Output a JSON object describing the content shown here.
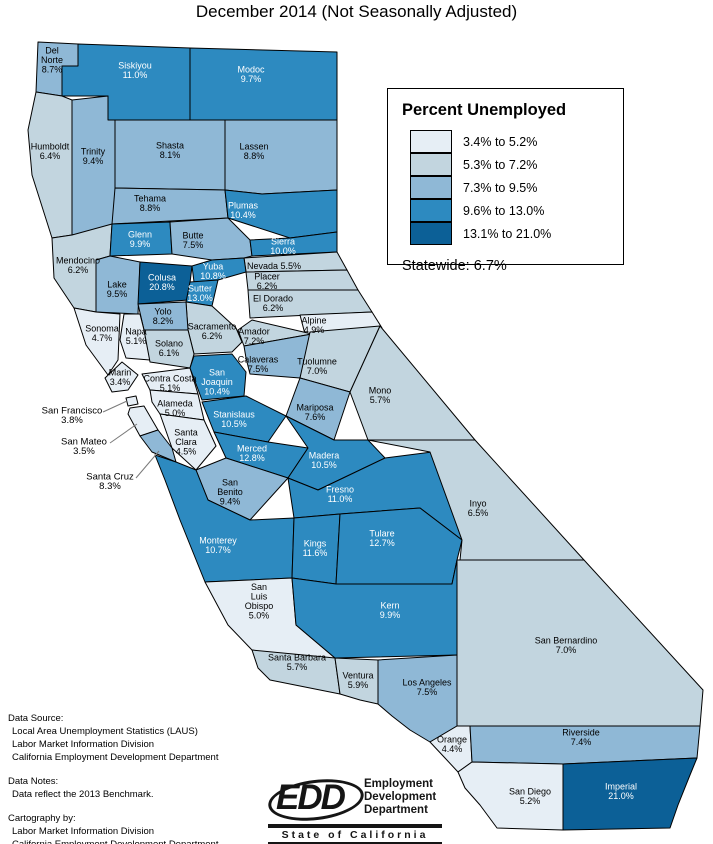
{
  "title": "December 2014 (Not Seasonally Adjusted)",
  "legend": {
    "title": "Percent Unemployed",
    "classes": [
      {
        "label": "3.4% to 5.2%",
        "color": "#e6eef5"
      },
      {
        "label": "5.3% to 7.2%",
        "color": "#c2d5df"
      },
      {
        "label": "7.3% to 9.5%",
        "color": "#8fb8d6"
      },
      {
        "label": "9.6% to 13.0%",
        "color": "#2d8ac0"
      },
      {
        "label": "13.1% to 21.0%",
        "color": "#0c6097"
      }
    ],
    "statewide": "Statewide: 6.7%"
  },
  "counties": [
    {
      "id": "delnorte",
      "name": "Del Norte",
      "rate": "8.7%"
    },
    {
      "id": "siskiyou",
      "name": "Siskiyou",
      "rate": "11.0%"
    },
    {
      "id": "modoc",
      "name": "Modoc",
      "rate": "9.7%"
    },
    {
      "id": "humboldt",
      "name": "Humboldt",
      "rate": "6.4%"
    },
    {
      "id": "trinity",
      "name": "Trinity",
      "rate": "9.4%"
    },
    {
      "id": "shasta",
      "name": "Shasta",
      "rate": "8.1%"
    },
    {
      "id": "lassen",
      "name": "Lassen",
      "rate": "8.8%"
    },
    {
      "id": "tehama",
      "name": "Tehama",
      "rate": "8.8%"
    },
    {
      "id": "plumas",
      "name": "Plumas",
      "rate": "10.4%"
    },
    {
      "id": "mendocino",
      "name": "Mendocino",
      "rate": "6.2%"
    },
    {
      "id": "glenn",
      "name": "Glenn",
      "rate": "9.9%"
    },
    {
      "id": "butte",
      "name": "Butte",
      "rate": "7.5%"
    },
    {
      "id": "sierra",
      "name": "Sierra",
      "rate": "10.0%"
    },
    {
      "id": "nevada",
      "name": "Nevada",
      "rate": "5.5%"
    },
    {
      "id": "lake",
      "name": "Lake",
      "rate": "9.5%"
    },
    {
      "id": "colusa",
      "name": "Colusa",
      "rate": "20.8%"
    },
    {
      "id": "yuba",
      "name": "Yuba",
      "rate": "10.8%"
    },
    {
      "id": "sutter",
      "name": "Sutter",
      "rate": "13.0%"
    },
    {
      "id": "placer",
      "name": "Placer",
      "rate": "6.2%"
    },
    {
      "id": "eldorado",
      "name": "El Dorado",
      "rate": "6.2%"
    },
    {
      "id": "alpine",
      "name": "Alpine",
      "rate": "4.9%"
    },
    {
      "id": "amador",
      "name": "Amador",
      "rate": "7.2%"
    },
    {
      "id": "sacramento",
      "name": "Sacramento",
      "rate": "6.2%"
    },
    {
      "id": "yolo",
      "name": "Yolo",
      "rate": "8.2%"
    },
    {
      "id": "napa",
      "name": "Napa",
      "rate": "5.1%"
    },
    {
      "id": "sonoma",
      "name": "Sonoma",
      "rate": "4.7%"
    },
    {
      "id": "solano",
      "name": "Solano",
      "rate": "6.1%"
    },
    {
      "id": "marin",
      "name": "Marin",
      "rate": "3.4%"
    },
    {
      "id": "contracosta",
      "name": "Contra Costa",
      "rate": "5.1%"
    },
    {
      "id": "sanfrancisco",
      "name": "San Francisco",
      "rate": "3.8%"
    },
    {
      "id": "sanmateo",
      "name": "San Mateo",
      "rate": "3.5%"
    },
    {
      "id": "alameda",
      "name": "Alameda",
      "rate": "5.0%"
    },
    {
      "id": "santaclara",
      "name": "Santa Clara",
      "rate": "4.5%"
    },
    {
      "id": "santacruz",
      "name": "Santa Cruz",
      "rate": "8.3%"
    },
    {
      "id": "sanjoaquin",
      "name": "San Joaquin",
      "rate": "10.4%"
    },
    {
      "id": "calaveras",
      "name": "Calaveras",
      "rate": "7.5%"
    },
    {
      "id": "tuolumne",
      "name": "Tuolumne",
      "rate": "7.0%"
    },
    {
      "id": "mono",
      "name": "Mono",
      "rate": "5.7%"
    },
    {
      "id": "stanislaus",
      "name": "Stanislaus",
      "rate": "10.5%"
    },
    {
      "id": "mariposa",
      "name": "Mariposa",
      "rate": "7.6%"
    },
    {
      "id": "merced",
      "name": "Merced",
      "rate": "12.8%"
    },
    {
      "id": "madera",
      "name": "Madera",
      "rate": "10.5%"
    },
    {
      "id": "fresno",
      "name": "Fresno",
      "rate": "11.0%"
    },
    {
      "id": "sanbenito",
      "name": "San Benito",
      "rate": "9.4%"
    },
    {
      "id": "monterey",
      "name": "Monterey",
      "rate": "10.7%"
    },
    {
      "id": "kings",
      "name": "Kings",
      "rate": "11.6%"
    },
    {
      "id": "tulare",
      "name": "Tulare",
      "rate": "12.7%"
    },
    {
      "id": "inyo",
      "name": "Inyo",
      "rate": "6.5%"
    },
    {
      "id": "slo",
      "name": "San Luis Obispo",
      "rate": "5.0%"
    },
    {
      "id": "kern",
      "name": "Kern",
      "rate": "9.9%"
    },
    {
      "id": "santabarbara",
      "name": "Santa Barbara",
      "rate": "5.7%"
    },
    {
      "id": "ventura",
      "name": "Ventura",
      "rate": "5.9%"
    },
    {
      "id": "losangeles",
      "name": "Los Angeles",
      "rate": "7.5%"
    },
    {
      "id": "sanbernardino",
      "name": "San Bernardino",
      "rate": "7.0%"
    },
    {
      "id": "orange",
      "name": "Orange",
      "rate": "4.4%"
    },
    {
      "id": "riverside",
      "name": "Riverside",
      "rate": "7.4%"
    },
    {
      "id": "sandiego",
      "name": "San Diego",
      "rate": "5.2%"
    },
    {
      "id": "imperial",
      "name": "Imperial",
      "rate": "21.0%"
    }
  ],
  "notes": {
    "data_source_heading": "Data Source:",
    "data_source_lines": [
      "Local Area Unemployment Statistics (LAUS)",
      "Labor Market Information Division",
      "California Employment Development Department"
    ],
    "data_notes_heading": "Data Notes:",
    "data_notes_lines": [
      "Data reflect the 2013 Benchmark."
    ],
    "cartography_heading": "Cartography by:",
    "cartography_lines": [
      "Labor Market Information Division",
      "California Employment Development Department"
    ]
  },
  "logo": {
    "acronym": "EDD",
    "dept_lines": [
      "Employment",
      "Development",
      "Department"
    ],
    "footer": "State of California"
  }
}
